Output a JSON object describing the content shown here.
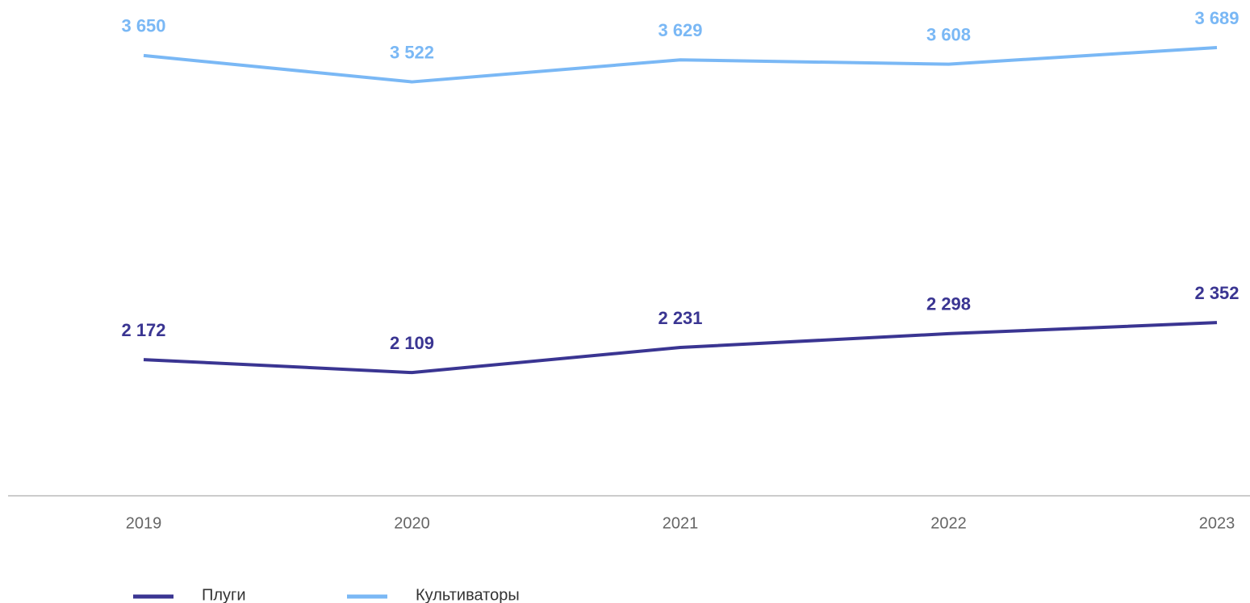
{
  "chart_data": {
    "type": "line",
    "categories": [
      "2019",
      "2020",
      "2021",
      "2022",
      "2023"
    ],
    "series": [
      {
        "name": "Плуги",
        "color": "#3a3592",
        "values": [
          2172,
          2109,
          2231,
          2298,
          2352
        ],
        "value_labels": [
          "2 172",
          "2 109",
          "2 231",
          "2 298",
          "2 352"
        ]
      },
      {
        "name": "Культиваторы",
        "color": "#7ab8f5",
        "values": [
          3650,
          3522,
          3629,
          3608,
          3689
        ],
        "value_labels": [
          "3 650",
          "3 522",
          "3 629",
          "3 608",
          "3 689"
        ]
      }
    ],
    "ylim": [
      1510,
      3920
    ]
  }
}
